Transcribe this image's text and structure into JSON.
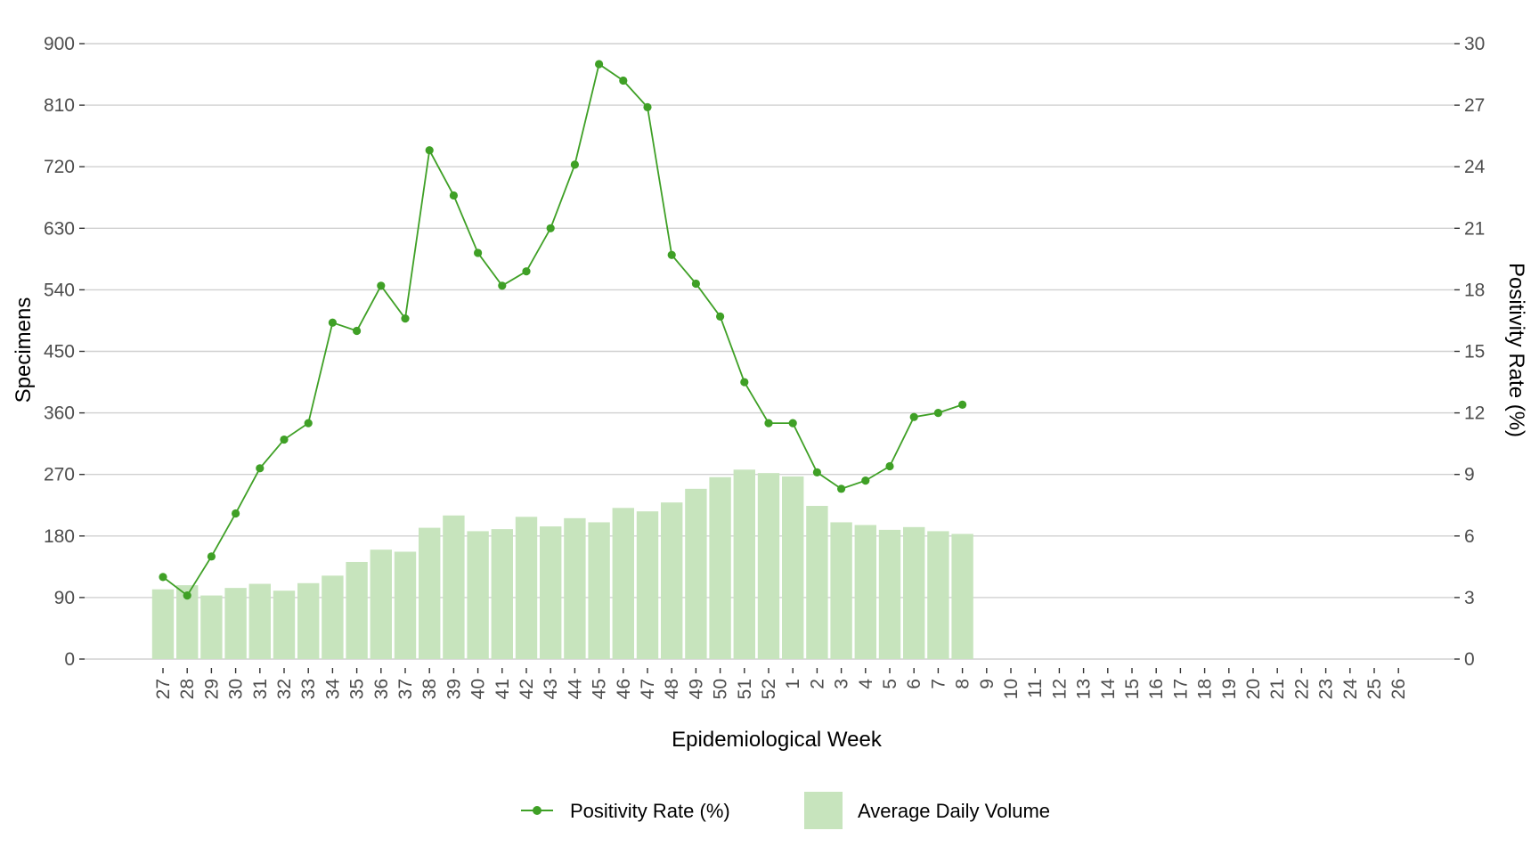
{
  "chart_data": {
    "type": "bar+line",
    "xlabel": "Epidemiological Week",
    "ylabel_left": "Specimens",
    "ylabel_right": "Positivity Rate (%)",
    "ylim_left": [
      0,
      900
    ],
    "ylim_right": [
      0,
      30
    ],
    "yticks_left": [
      0,
      90,
      180,
      270,
      360,
      450,
      540,
      630,
      720,
      810,
      900
    ],
    "yticks_right": [
      0,
      3,
      6,
      9,
      12,
      15,
      18,
      21,
      24,
      27,
      30
    ],
    "grid": true,
    "legend_position": "bottom",
    "categories": [
      "27",
      "28",
      "29",
      "30",
      "31",
      "32",
      "33",
      "34",
      "35",
      "36",
      "37",
      "38",
      "39",
      "40",
      "41",
      "42",
      "43",
      "44",
      "45",
      "46",
      "47",
      "48",
      "49",
      "50",
      "51",
      "52",
      "1",
      "2",
      "3",
      "4",
      "5",
      "6",
      "7",
      "8",
      "9",
      "10",
      "11",
      "12",
      "13",
      "14",
      "15",
      "16",
      "17",
      "18",
      "19",
      "20",
      "21",
      "22",
      "23",
      "24",
      "25",
      "26"
    ],
    "series": [
      {
        "name": "Average Daily Volume",
        "type": "bar",
        "axis": "left",
        "color": "#c7e4bd",
        "values": [
          102,
          108,
          93,
          104,
          110,
          100,
          111,
          122,
          142,
          160,
          157,
          192,
          210,
          187,
          190,
          208,
          194,
          206,
          200,
          221,
          216,
          229,
          249,
          266,
          277,
          272,
          267,
          224,
          200,
          196,
          189,
          193,
          187,
          183,
          null,
          null,
          null,
          null,
          null,
          null,
          null,
          null,
          null,
          null,
          null,
          null,
          null,
          null,
          null,
          null,
          null,
          null
        ]
      },
      {
        "name": "Positivity Rate (%)",
        "type": "line",
        "axis": "right",
        "color": "#3fa026",
        "values": [
          4.0,
          3.1,
          5.0,
          7.1,
          9.3,
          10.7,
          11.5,
          16.4,
          16.0,
          18.2,
          16.6,
          24.8,
          22.6,
          19.8,
          18.2,
          18.9,
          21.0,
          24.1,
          29.0,
          28.2,
          26.9,
          19.7,
          18.3,
          16.7,
          13.5,
          11.5,
          11.5,
          9.1,
          8.3,
          8.7,
          9.4,
          11.8,
          12.0,
          12.4,
          null,
          null,
          null,
          null,
          null,
          null,
          null,
          null,
          null,
          null,
          null,
          null,
          null,
          null,
          null,
          null,
          null,
          null
        ]
      }
    ]
  }
}
